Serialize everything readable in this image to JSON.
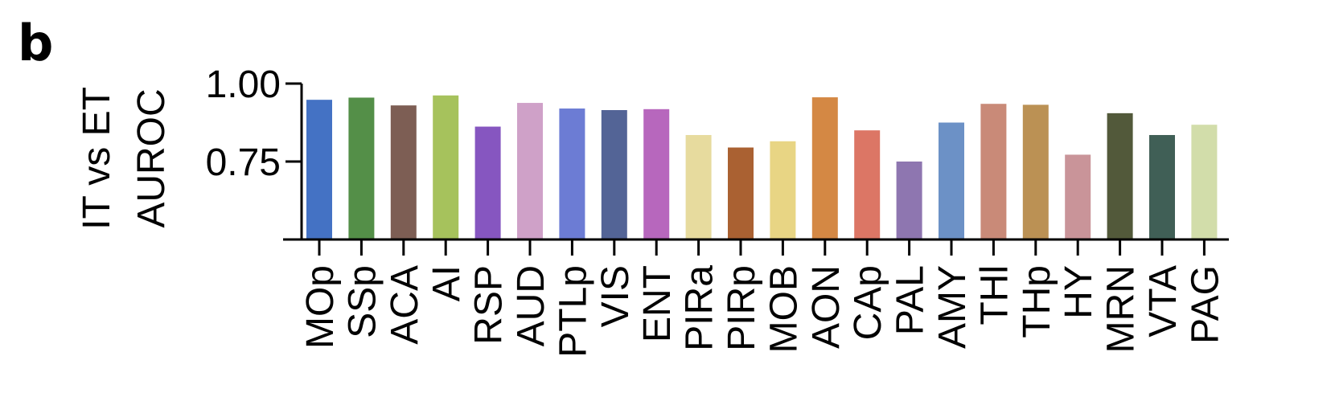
{
  "panel_label": "b",
  "chart_data": {
    "type": "bar",
    "ylabel_lines": [
      "IT vs ET",
      "AUROC"
    ],
    "xlabel": "",
    "ylim": [
      0.5,
      1.0
    ],
    "yticks": [
      0.75,
      1.0
    ],
    "ytick_labels": [
      "0.75",
      "1.00"
    ],
    "grid": false,
    "categories": [
      "MOp",
      "SSp",
      "ACA",
      "AI",
      "RSP",
      "AUD",
      "PTLp",
      "VIS",
      "ENT",
      "PIRa",
      "PIRp",
      "MOB",
      "AON",
      "CAp",
      "PAL",
      "AMY",
      "THl",
      "THp",
      "HY",
      "MRN",
      "VTA",
      "PAG"
    ],
    "values": [
      0.948,
      0.955,
      0.93,
      0.962,
      0.862,
      0.938,
      0.92,
      0.915,
      0.918,
      0.835,
      0.795,
      0.815,
      0.956,
      0.85,
      0.75,
      0.875,
      0.935,
      0.932,
      0.772,
      0.905,
      0.835,
      0.868
    ],
    "colors": [
      "#4472C4",
      "#548F48",
      "#7D5E54",
      "#A6C25C",
      "#8656C0",
      "#CFA1C8",
      "#6C7CD4",
      "#536496",
      "#B767BD",
      "#E7DB9E",
      "#AA6132",
      "#E8D584",
      "#D48844",
      "#DC7665",
      "#8E76B0",
      "#6C91C6",
      "#C98A78",
      "#BB9154",
      "#C99499",
      "#52593A",
      "#405F56",
      "#D2DDAA"
    ]
  }
}
